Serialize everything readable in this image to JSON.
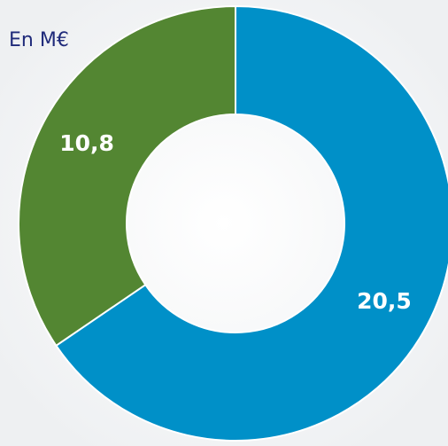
{
  "chart_data": {
    "type": "donut",
    "title": "En M€",
    "categories": [
      null,
      null
    ],
    "values": [
      20.5,
      10.8
    ],
    "value_labels": [
      "20,5",
      "10,8"
    ],
    "colors": [
      "#0090c8",
      "#538632"
    ]
  }
}
